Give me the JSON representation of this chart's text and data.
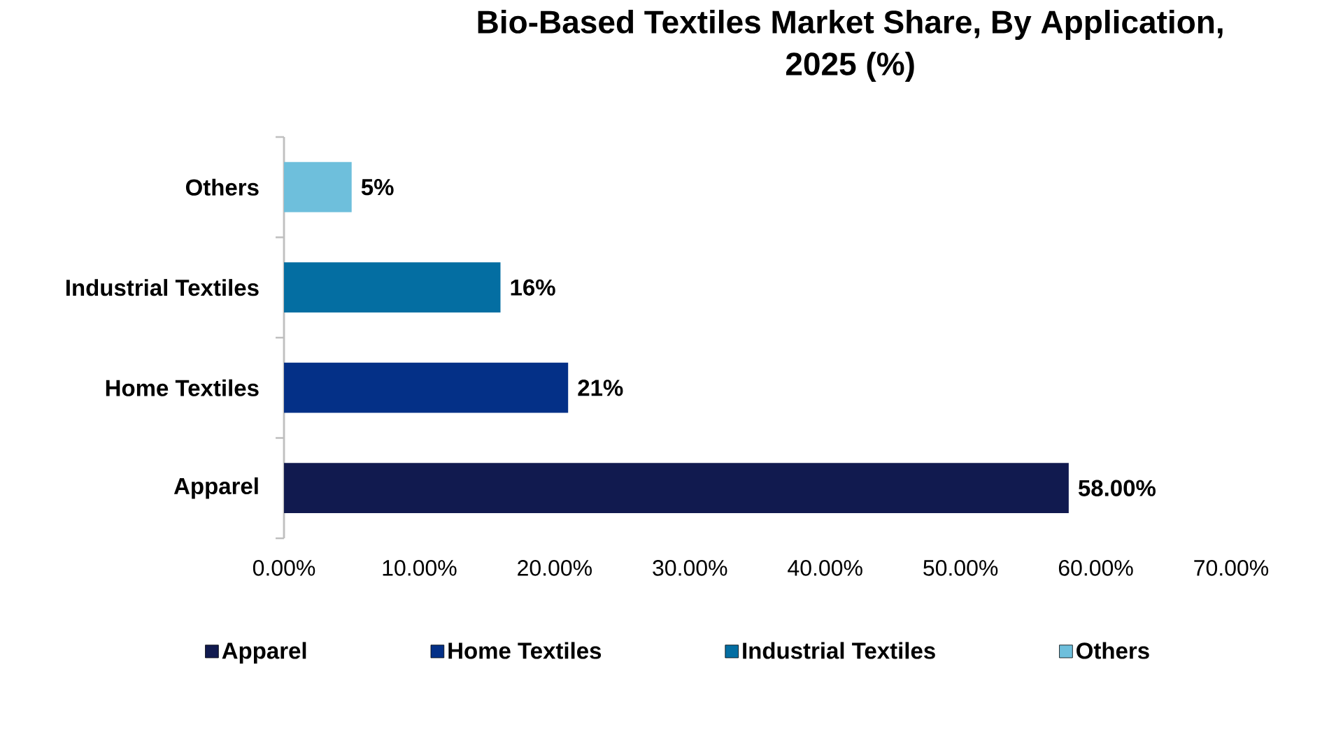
{
  "chart_data": {
    "type": "bar",
    "orientation": "horizontal",
    "title": "Bio-Based Textiles Market Share, By Application, 2025 (%)",
    "categories": [
      "Others",
      "Industrial Textiles",
      "Home Textiles",
      "Apparel"
    ],
    "series": [
      {
        "name": "Apparel",
        "color": "#111a4f",
        "values": [
          null,
          null,
          null,
          58
        ],
        "value_labels": [
          null,
          null,
          null,
          "58.00%"
        ]
      },
      {
        "name": "Home Textiles",
        "color": "#043087",
        "values": [
          null,
          null,
          21,
          null
        ],
        "value_labels": [
          null,
          null,
          "21%",
          null
        ]
      },
      {
        "name": "Industrial Textiles",
        "color": "#046ea2",
        "values": [
          null,
          16,
          null,
          null
        ],
        "value_labels": [
          null,
          "16%",
          null,
          null
        ]
      },
      {
        "name": "Others",
        "color": "#6ebfdc",
        "values": [
          5,
          null,
          null,
          null
        ],
        "value_labels": [
          "5%",
          null,
          null,
          null
        ]
      }
    ],
    "xlim": [
      0,
      70
    ],
    "xticks": [
      {
        "value": 0,
        "label": "0.00%"
      },
      {
        "value": 10,
        "label": "10.00%"
      },
      {
        "value": 20,
        "label": "20.00%"
      },
      {
        "value": 30,
        "label": "30.00%"
      },
      {
        "value": 40,
        "label": "40.00%"
      },
      {
        "value": 50,
        "label": "50.00%"
      },
      {
        "value": 60,
        "label": "60.00%"
      },
      {
        "value": 70,
        "label": "70.00%"
      }
    ],
    "legend": "bottom"
  }
}
